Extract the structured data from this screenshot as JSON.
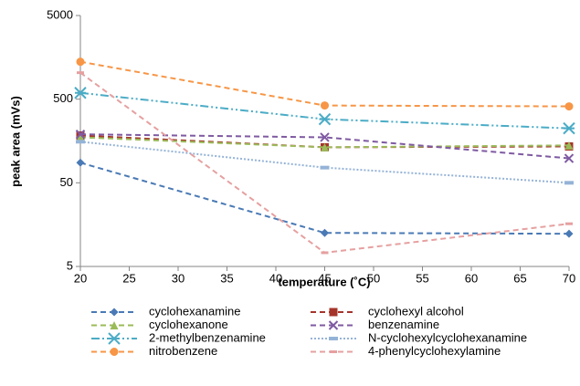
{
  "chart_data": {
    "type": "line",
    "xlabel": "temperature (˚C)",
    "ylabel": "peak area (mVs)",
    "x": [
      20,
      45,
      70
    ],
    "xlim": [
      20,
      70
    ],
    "xticks": [
      20,
      25,
      30,
      35,
      40,
      45,
      50,
      55,
      60,
      65,
      70
    ],
    "ylim": [
      5,
      5000
    ],
    "yticks": [
      5,
      50,
      500,
      5000
    ],
    "yscale": "log",
    "series": [
      {
        "name": "cyclohexanamine",
        "color": "#4a7ab5",
        "dash": "6,4",
        "marker": "diamond",
        "values": [
          87,
          12.6,
          12.3
        ]
      },
      {
        "name": "cyclohexyl alcohol",
        "color": "#a5352b",
        "dash": "6,4",
        "marker": "square",
        "values": [
          184,
          133,
          136
        ]
      },
      {
        "name": "cyclohexanone",
        "color": "#9bbb59",
        "dash": "6,4",
        "marker": "triangle",
        "values": [
          175,
          133,
          140
        ]
      },
      {
        "name": "benzenamine",
        "color": "#7f5aa2",
        "dash": "6,4",
        "marker": "cross",
        "values": [
          190,
          175,
          98
        ]
      },
      {
        "name": "2-methylbenzenamine",
        "color": "#4bacc6",
        "dash": "9,3,2,3,2,3",
        "marker": "star",
        "values": [
          595,
          288,
          224
        ]
      },
      {
        "name": "N-cyclohexylcyclohexanamine",
        "color": "#95b3d7",
        "dash": "2,2",
        "marker": "dash",
        "values": [
          155,
          76,
          50
        ]
      },
      {
        "name": "nitrobenzene",
        "color": "#f79646",
        "dash": "6,4",
        "marker": "circle",
        "values": [
          1400,
          420,
          410
        ]
      },
      {
        "name": "4-phenylcyclohexylamine",
        "color": "#e6a0a0",
        "dash": "6,4",
        "marker": "bar",
        "values": [
          1036,
          7.3,
          16.2
        ]
      }
    ]
  }
}
